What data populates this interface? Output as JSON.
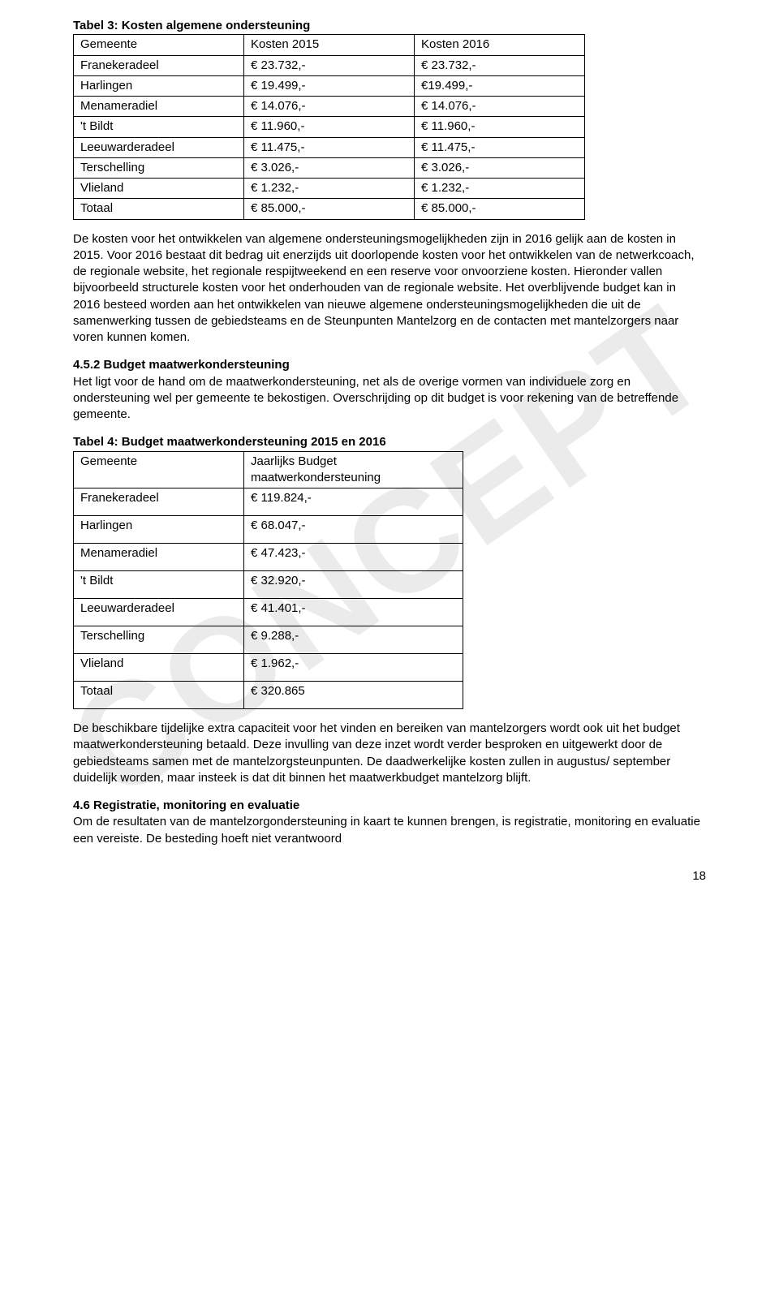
{
  "watermark": "CONCEPT",
  "table3": {
    "title": "Tabel 3: Kosten algemene ondersteuning",
    "headers": [
      "Gemeente",
      "Kosten 2015",
      "Kosten 2016"
    ],
    "rows": [
      [
        "Franekeradeel",
        "€ 23.732,-",
        "€ 23.732,-"
      ],
      [
        "Harlingen",
        "€ 19.499,-",
        "€19.499,-"
      ],
      [
        "Menameradiel",
        "€ 14.076,-",
        "€ 14.076,-"
      ],
      [
        "'t Bildt",
        "€ 11.960,-",
        "€ 11.960,-"
      ],
      [
        "Leeuwarderadeel",
        "€ 11.475,-",
        "€ 11.475,-"
      ],
      [
        "Terschelling",
        "€ 3.026,-",
        "€ 3.026,-"
      ],
      [
        "Vlieland",
        "€ 1.232,-",
        "€ 1.232,-"
      ],
      [
        "Totaal",
        "€ 85.000,-",
        "€ 85.000,-"
      ]
    ]
  },
  "para1": "De kosten voor het ontwikkelen van algemene ondersteuningsmogelijkheden zijn in 2016 gelijk aan de kosten in 2015. Voor 2016 bestaat dit bedrag uit enerzijds uit doorlopende kosten voor het ontwikkelen van de netwerkcoach, de regionale website, het regionale respijtweekend en een reserve voor onvoorziene kosten. Hieronder vallen bijvoorbeeld structurele kosten voor het onderhouden van de regionale website. Het overblijvende budget kan in 2016 besteed worden aan het ontwikkelen van nieuwe algemene ondersteuningsmogelijkheden die uit de samenwerking tussen de gebiedsteams en de Steunpunten Mantelzorg en de contacten met mantelzorgers naar voren kunnen komen.",
  "h452": "4.5.2 Budget maatwerkondersteuning",
  "para2": "Het ligt voor de hand om de maatwerkondersteuning, net als de overige vormen van individuele zorg en ondersteuning wel per gemeente te bekostigen. Overschrijding op dit budget is voor rekening van de betreffende gemeente.",
  "table4": {
    "title": "Tabel 4: Budget maatwerkondersteuning 2015 en 2016",
    "headers": [
      "Gemeente",
      "Jaarlijks Budget maatwerkondersteuning"
    ],
    "rows": [
      [
        "Franekeradeel",
        "€ 119.824,-"
      ],
      [
        "Harlingen",
        "€ 68.047,-"
      ],
      [
        "Menameradiel",
        "€ 47.423,-"
      ],
      [
        "'t Bildt",
        "€ 32.920,-"
      ],
      [
        "Leeuwarderadeel",
        "€ 41.401,-"
      ],
      [
        "Terschelling",
        "€ 9.288,-"
      ],
      [
        "Vlieland",
        "€ 1.962,-"
      ],
      [
        "Totaal",
        "€ 320.865"
      ]
    ]
  },
  "para3": "De beschikbare tijdelijke extra capaciteit voor het vinden en bereiken van mantelzorgers wordt ook uit het budget maatwerkondersteuning betaald. Deze invulling van deze inzet wordt verder besproken en uitgewerkt door de gebiedsteams samen met de mantelzorgsteunpunten. De daadwerkelijke kosten zullen in augustus/ september duidelijk worden, maar insteek is dat dit binnen het maatwerkbudget mantelzorg blijft.",
  "h46": "4.6 Registratie, monitoring en evaluatie",
  "para4": "Om de resultaten van de mantelzorgondersteuning in kaart te kunnen brengen, is registratie, monitoring en evaluatie een vereiste. De besteding hoeft niet verantwoord",
  "pageNumber": "18"
}
